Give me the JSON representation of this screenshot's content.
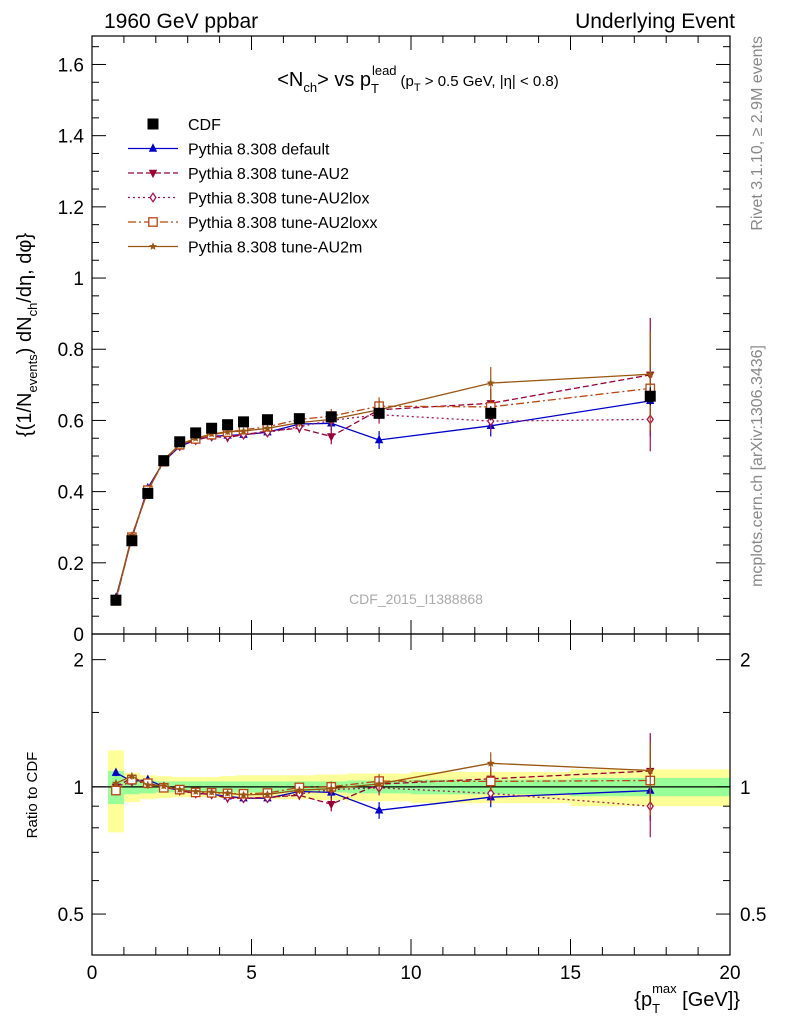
{
  "header": {
    "left": "1960 GeV ppbar",
    "right": "Underlying Event"
  },
  "side_labels": {
    "rivet": "Rivet 3.1.10, ≥ 2.9M events",
    "mcplots": "mcplots.cern.ch [arXiv:1306.3436]"
  },
  "watermark": "CDF_2015_I1388868",
  "colors": {
    "CDF": "#000000",
    "default": "#0000cc",
    "AU2": "#990033",
    "AU2lox": "#aa1155",
    "AU2loxx": "#bb4411",
    "AU2m": "#995511",
    "band_inner": "#99ff99",
    "band_outer": "#ffff99"
  },
  "chart_data": [
    {
      "type": "scatter",
      "title_parts": {
        "n": "<N",
        "n_sub": "ch",
        "vs": "> vs p",
        "p_sup": "lead",
        "p_sub": "T",
        "cut1": "(p",
        "cut1_sub": "T",
        "cut2": " > 0.5 GeV, |η| < 0.8)"
      },
      "ylabel_parts": {
        "a": "{(1/N",
        "a_sub": "events",
        "b": ") dN",
        "b_sub": "ch",
        "c": "/dη, dφ}"
      },
      "ylim": [
        0,
        1.68
      ],
      "xlim": [
        0,
        20
      ],
      "yticks": [
        "0",
        "0.2",
        "0.4",
        "0.6",
        "0.8",
        "1",
        "1.2",
        "1.4",
        "1.6"
      ],
      "legend_position": "top-left",
      "x": [
        0.75,
        1.25,
        1.75,
        2.25,
        2.75,
        3.25,
        3.75,
        4.25,
        4.75,
        5.5,
        6.5,
        7.5,
        9.0,
        12.5,
        17.5
      ],
      "series": [
        {
          "key": "CDF",
          "name": "CDF",
          "marker": "square-filled",
          "values": [
            0.095,
            0.262,
            0.395,
            0.487,
            0.54,
            0.565,
            0.578,
            0.588,
            0.596,
            0.602,
            0.605,
            0.61,
            0.62,
            0.62,
            0.668
          ],
          "errors": [
            0.004,
            0.008,
            0.01,
            0.01,
            0.01,
            0.01,
            0.01,
            0.01,
            0.01,
            0.01,
            0.012,
            0.013,
            0.015,
            0.02,
            0.025
          ]
        },
        {
          "key": "default",
          "name": "Pythia 8.308 default",
          "marker": "triangle-up-filled",
          "line": "solid",
          "values": [
            0.102,
            0.27,
            0.41,
            0.485,
            0.527,
            0.545,
            0.555,
            0.558,
            0.56,
            0.567,
            0.59,
            0.592,
            0.545,
            0.585,
            0.655
          ],
          "errors": [
            0.003,
            0.005,
            0.006,
            0.006,
            0.007,
            0.007,
            0.007,
            0.008,
            0.008,
            0.009,
            0.012,
            0.02,
            0.025,
            0.03,
            0.1
          ]
        },
        {
          "key": "AU2",
          "name": "Pythia 8.308 tune-AU2",
          "marker": "triangle-down-filled",
          "line": "dashed",
          "values": [
            0.095,
            0.275,
            0.405,
            0.487,
            0.53,
            0.545,
            0.555,
            0.552,
            0.56,
            0.57,
            0.578,
            0.555,
            0.63,
            0.648,
            0.728
          ],
          "errors": [
            0.003,
            0.005,
            0.006,
            0.006,
            0.007,
            0.007,
            0.007,
            0.008,
            0.008,
            0.009,
            0.012,
            0.022,
            0.025,
            0.04,
            0.16
          ]
        },
        {
          "key": "AU2lox",
          "name": "Pythia 8.308 tune-AU2lox",
          "marker": "diamond-open",
          "line": "dotted",
          "values": [
            0.095,
            0.27,
            0.405,
            0.487,
            0.528,
            0.545,
            0.555,
            0.556,
            0.56,
            0.566,
            0.582,
            0.6,
            0.616,
            0.598,
            0.603
          ],
          "errors": [
            0.003,
            0.005,
            0.006,
            0.006,
            0.007,
            0.007,
            0.007,
            0.008,
            0.008,
            0.009,
            0.012,
            0.02,
            0.025,
            0.03,
            0.09
          ]
        },
        {
          "key": "AU2loxx",
          "name": "Pythia 8.308 tune-AU2loxx",
          "marker": "square-open",
          "line": "dashdot",
          "values": [
            0.093,
            0.272,
            0.404,
            0.484,
            0.532,
            0.548,
            0.56,
            0.567,
            0.574,
            0.582,
            0.603,
            0.612,
            0.64,
            0.638,
            0.69
          ],
          "errors": [
            0.003,
            0.005,
            0.006,
            0.006,
            0.007,
            0.007,
            0.007,
            0.008,
            0.008,
            0.009,
            0.012,
            0.02,
            0.025,
            0.035,
            0.12
          ]
        },
        {
          "key": "AU2m",
          "name": "Pythia 8.308 tune-AU2m",
          "marker": "star-filled",
          "line": "solid",
          "values": [
            0.097,
            0.277,
            0.4,
            0.49,
            0.532,
            0.55,
            0.562,
            0.568,
            0.57,
            0.578,
            0.594,
            0.603,
            0.63,
            0.705,
            0.73
          ],
          "errors": [
            0.003,
            0.005,
            0.006,
            0.006,
            0.007,
            0.007,
            0.007,
            0.008,
            0.008,
            0.009,
            0.012,
            0.02,
            0.025,
            0.045,
            0.12
          ]
        }
      ]
    },
    {
      "type": "scatter",
      "ylabel": "Ratio to CDF",
      "yscale": "log",
      "ylim": [
        0.4,
        2.3
      ],
      "xlim": [
        0,
        20
      ],
      "yticks": [
        "0.5",
        "1",
        "2"
      ],
      "xticks": [
        "0",
        "5",
        "10",
        "15",
        "20"
      ],
      "xlabel_parts": {
        "a": "{p",
        "a_sup": "max",
        "a_sub": "T",
        "b": " [GeV]}"
      },
      "bands": {
        "edges": [
          0.5,
          1.0,
          1.5,
          2.0,
          2.5,
          3.0,
          3.5,
          4.0,
          4.5,
          5.0,
          6.0,
          7.0,
          8.0,
          10.0,
          15.0,
          20.0
        ],
        "inner_half_width": [
          0.09,
          0.04,
          0.035,
          0.03,
          0.03,
          0.03,
          0.03,
          0.03,
          0.03,
          0.03,
          0.03,
          0.03,
          0.035,
          0.04,
          0.05
        ],
        "outer_half_width": [
          0.22,
          0.08,
          0.065,
          0.06,
          0.055,
          0.055,
          0.055,
          0.06,
          0.065,
          0.065,
          0.065,
          0.07,
          0.075,
          0.085,
          0.1
        ]
      },
      "x": [
        0.75,
        1.25,
        1.75,
        2.25,
        2.75,
        3.25,
        3.75,
        4.25,
        4.75,
        5.5,
        6.5,
        7.5,
        9.0,
        12.5,
        17.5
      ],
      "series": [
        {
          "key": "default",
          "values": [
            1.08,
            1.03,
            1.04,
            1.0,
            0.98,
            0.965,
            0.96,
            0.95,
            0.94,
            0.94,
            0.975,
            0.97,
            0.88,
            0.945,
            0.98
          ],
          "errors": [
            0.02,
            0.02,
            0.02,
            0.015,
            0.015,
            0.015,
            0.015,
            0.015,
            0.015,
            0.015,
            0.02,
            0.03,
            0.04,
            0.05,
            0.15
          ]
        },
        {
          "key": "AU2",
          "values": [
            1.0,
            1.05,
            1.02,
            1.0,
            0.98,
            0.965,
            0.96,
            0.94,
            0.94,
            0.945,
            0.955,
            0.91,
            1.015,
            1.045,
            1.09
          ],
          "errors": [
            0.02,
            0.02,
            0.02,
            0.015,
            0.015,
            0.015,
            0.015,
            0.015,
            0.015,
            0.015,
            0.02,
            0.035,
            0.04,
            0.06,
            0.25
          ]
        },
        {
          "key": "AU2lox",
          "values": [
            1.0,
            1.03,
            1.02,
            1.0,
            0.98,
            0.965,
            0.96,
            0.945,
            0.94,
            0.94,
            0.962,
            0.985,
            0.995,
            0.965,
            0.9
          ],
          "errors": [
            0.02,
            0.02,
            0.02,
            0.015,
            0.015,
            0.015,
            0.015,
            0.015,
            0.015,
            0.015,
            0.02,
            0.03,
            0.04,
            0.05,
            0.14
          ]
        },
        {
          "key": "AU2loxx",
          "values": [
            0.98,
            1.04,
            1.02,
            0.995,
            0.985,
            0.97,
            0.968,
            0.965,
            0.963,
            0.967,
            0.997,
            1.0,
            1.032,
            1.03,
            1.035
          ],
          "errors": [
            0.02,
            0.02,
            0.02,
            0.015,
            0.015,
            0.015,
            0.015,
            0.015,
            0.015,
            0.015,
            0.02,
            0.03,
            0.04,
            0.055,
            0.18
          ]
        },
        {
          "key": "AU2m",
          "values": [
            1.02,
            1.06,
            1.01,
            1.005,
            0.985,
            0.975,
            0.972,
            0.966,
            0.957,
            0.96,
            0.982,
            0.99,
            1.016,
            1.137,
            1.093
          ],
          "errors": [
            0.02,
            0.02,
            0.02,
            0.015,
            0.015,
            0.015,
            0.015,
            0.015,
            0.015,
            0.015,
            0.02,
            0.03,
            0.04,
            0.07,
            0.18
          ]
        }
      ]
    }
  ]
}
